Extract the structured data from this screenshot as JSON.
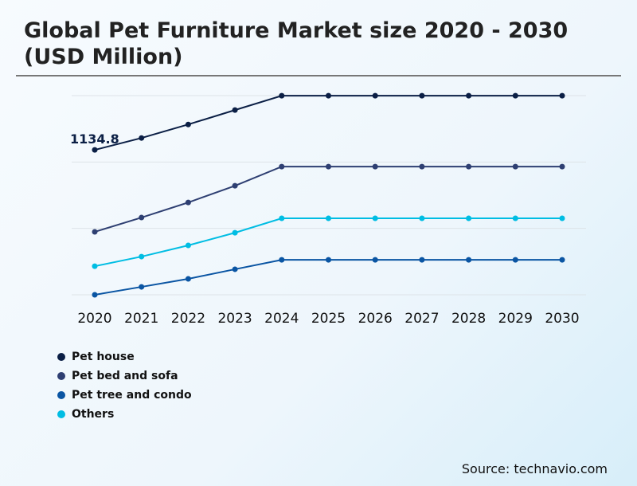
{
  "title": "Global Pet Furniture Market size 2020 - 2030 (USD Million)",
  "source": "Source: technavio.com",
  "chart_data": {
    "type": "line",
    "title": "Global Pet Furniture Market size 2020 - 2030 (USD Million)",
    "categories": [
      "2020",
      "2021",
      "2022",
      "2023",
      "2024",
      "2025",
      "2026",
      "2027",
      "2028",
      "2029",
      "2030"
    ],
    "ylim": [
      0,
      1560
    ],
    "grid": true,
    "legend": "bottom-left",
    "annotation": "1134.8",
    "series": [
      {
        "name": "Pet house",
        "color": "#0b1f45",
        "values": [
          1134.8,
          1228,
          1334,
          1447,
          1559,
          1559,
          1559,
          1559,
          1559,
          1559,
          1559
        ]
      },
      {
        "name": "Pet bed and sofa",
        "color": "#2e3f72",
        "values": [
          493,
          605,
          723,
          854,
          1004,
          1004,
          1004,
          1004,
          1004,
          1004,
          1004
        ]
      },
      {
        "name": "Pet tree and condo",
        "color": "#0a55a3",
        "values": [
          0,
          62,
          125,
          200,
          274,
          274,
          274,
          274,
          274,
          274,
          274
        ]
      },
      {
        "name": "Others",
        "color": "#00bde3",
        "values": [
          224,
          299,
          387,
          486,
          599,
          599,
          599,
          599,
          599,
          599,
          599
        ]
      }
    ]
  }
}
